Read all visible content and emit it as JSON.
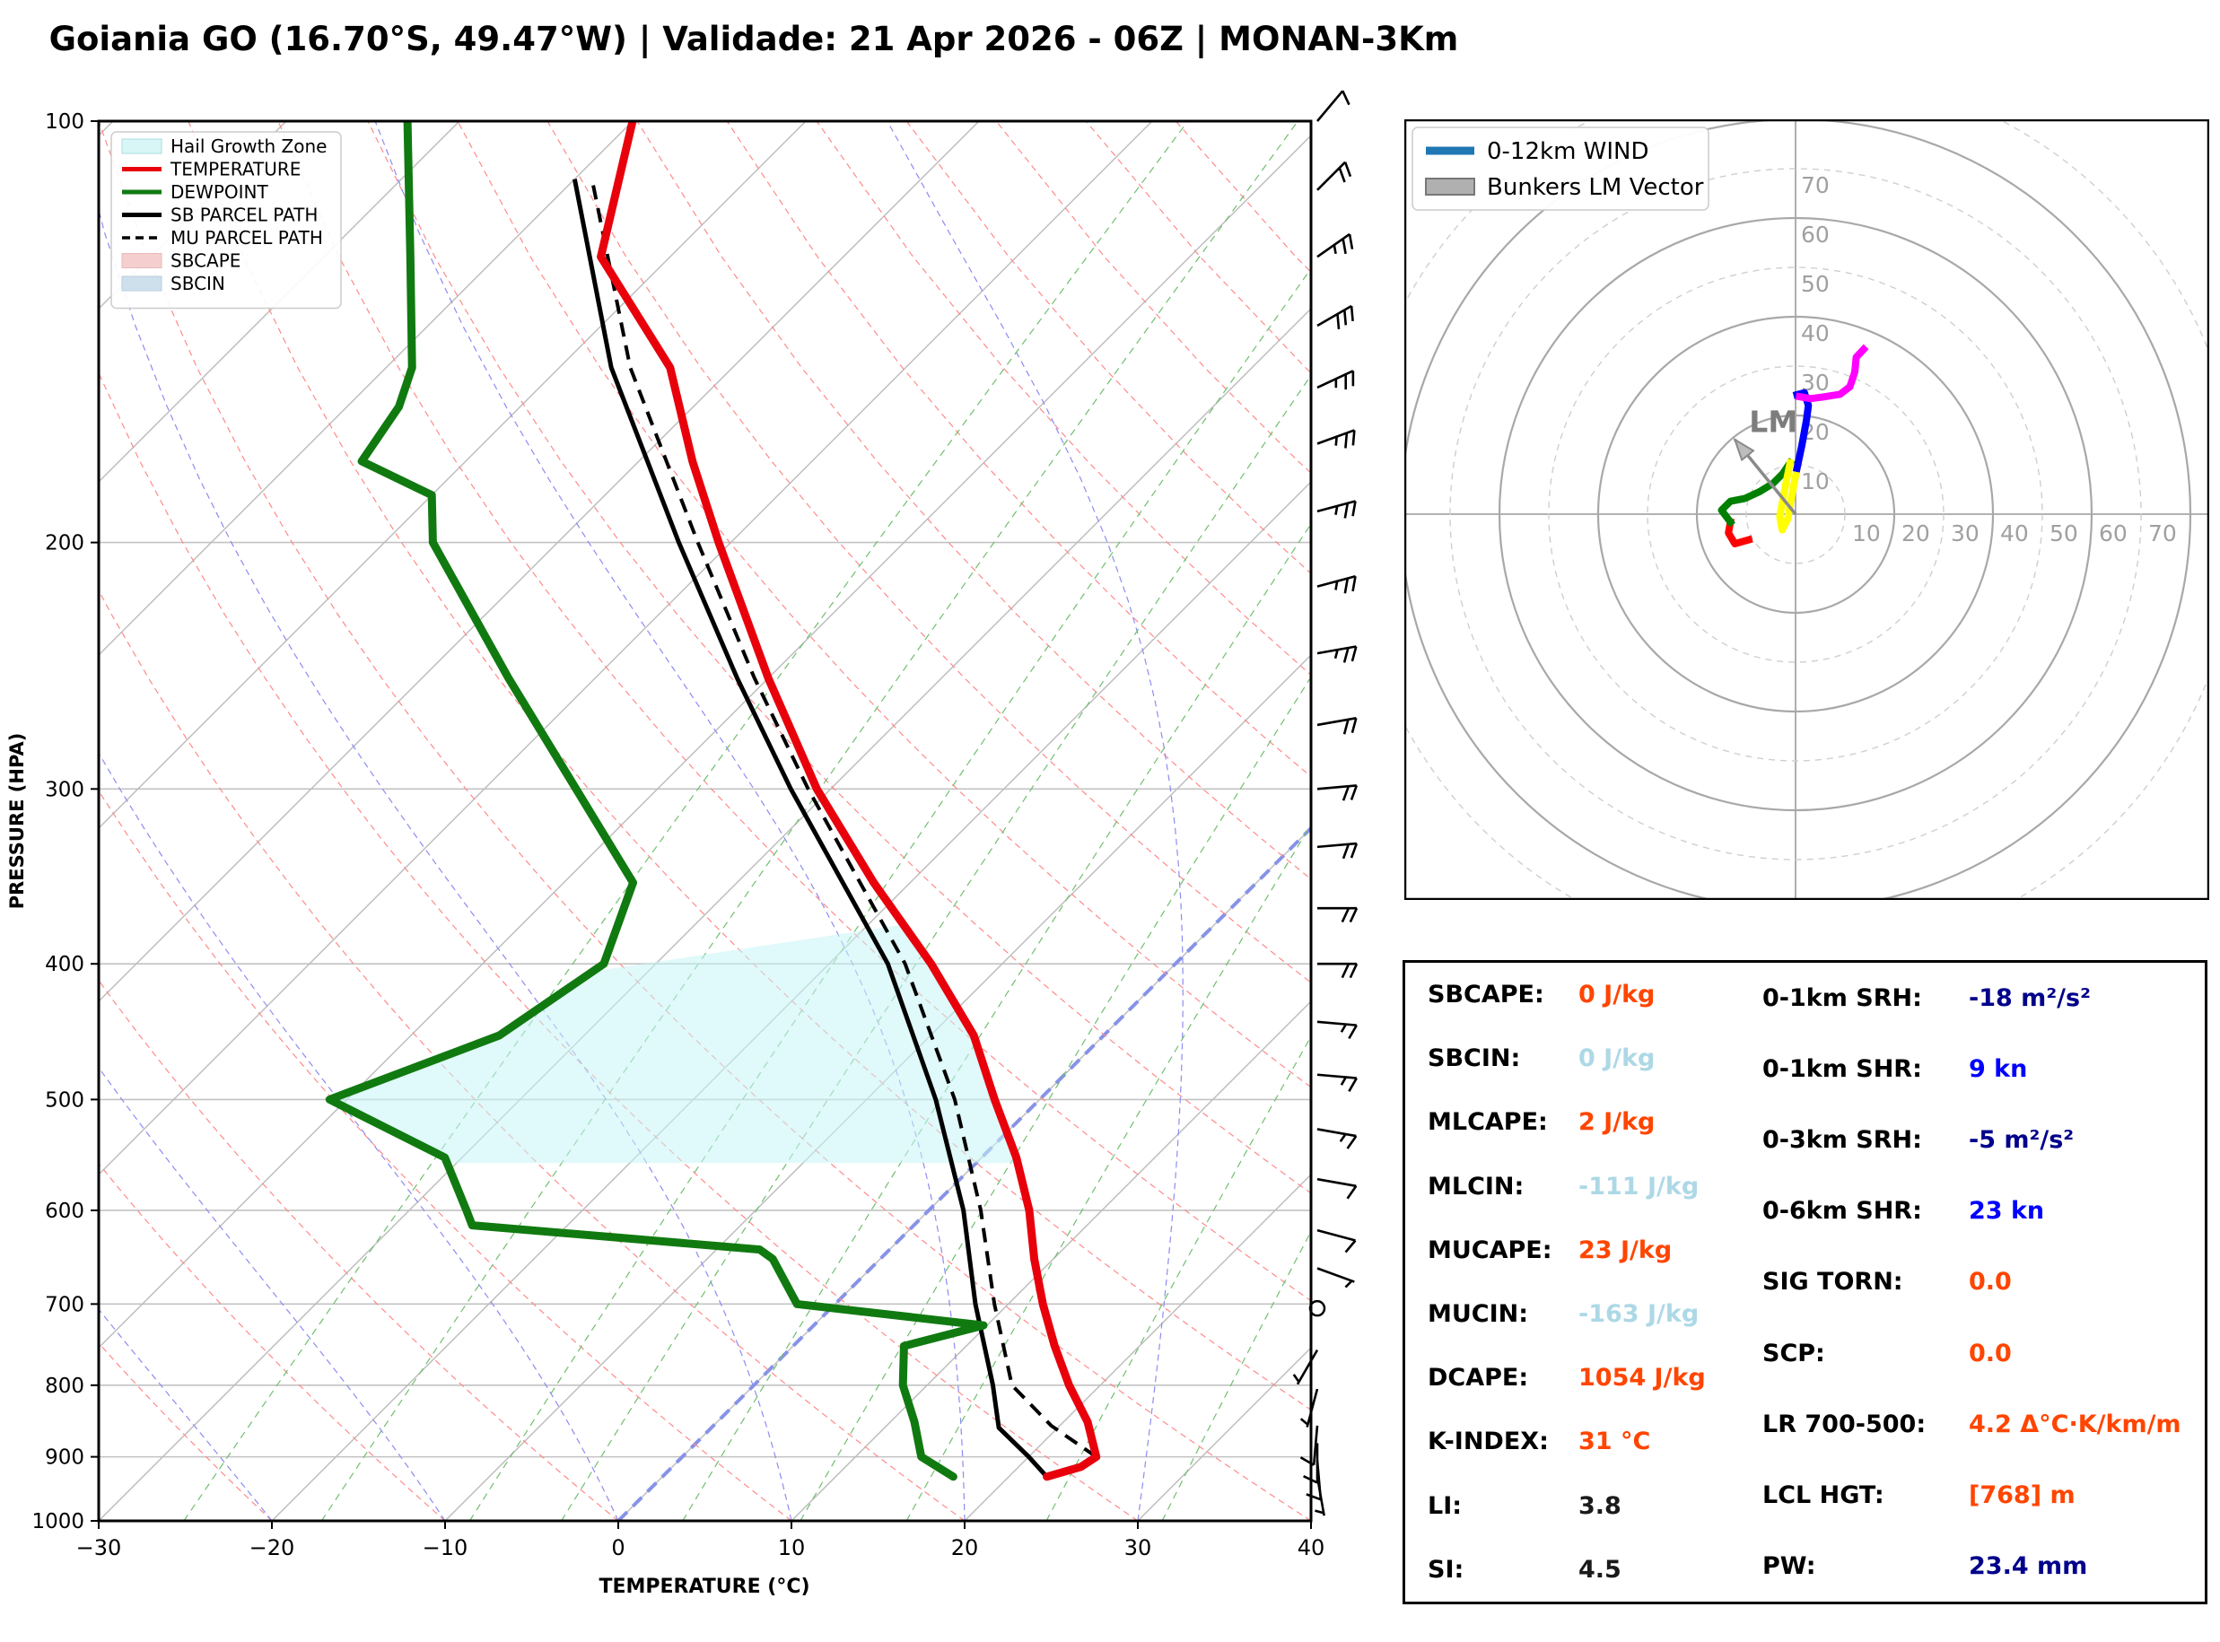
{
  "title": "Goiania GO (16.70°S, 49.47°W) | Validade: 21 Apr 2026 - 06Z | MONAN-3Km",
  "skewt": {
    "xlabel": "TEMPERATURE (°C)",
    "ylabel": "PRESSURE (HPA)",
    "x_ticks": [
      "−30",
      "−20",
      "−10",
      "0",
      "10",
      "20",
      "30",
      "40"
    ],
    "x_tick_values": [
      -30,
      -20,
      -10,
      0,
      10,
      20,
      30,
      40
    ],
    "y_ticks": [
      100,
      200,
      300,
      400,
      500,
      600,
      700,
      800,
      900,
      1000
    ],
    "legend": [
      {
        "label": "Hail Growth Zone",
        "type": "patch",
        "color": "#D9F6F6",
        "edge": "#aadde2"
      },
      {
        "label": "TEMPERATURE",
        "type": "line",
        "color": "#E8000B"
      },
      {
        "label": "DEWPOINT",
        "type": "line",
        "color": "#107A10"
      },
      {
        "label": "SB PARCEL PATH",
        "type": "line",
        "color": "#000000"
      },
      {
        "label": "MU PARCEL PATH",
        "type": "dashed",
        "color": "#000000"
      },
      {
        "label": "SBCAPE",
        "type": "patch",
        "color": "#F5CFCF",
        "edge": "#e8b8b8"
      },
      {
        "label": "SBCIN",
        "type": "patch",
        "color": "#CFE0ED",
        "edge": "#b8cede"
      }
    ],
    "colors": {
      "temperature": "#E8000B",
      "dewpoint": "#107A10",
      "parcel": "#000000",
      "isobar": "#c2c2c2",
      "isotherm": "#bbbbbb",
      "zero_isotherm": "#8793E8",
      "dry_adiabat": "#FF8A8A",
      "moist_adiabat": "#8C8CF2",
      "mixing_ratio": "#6FBF6F",
      "hail_zone_fill": "#C7F4F6"
    }
  },
  "chart_data": [
    {
      "type": "line",
      "name": "skewt_sounding",
      "title": "Goiania GO (16.70°S, 49.47°W) | Validade: 21 Apr 2026 - 06Z | MONAN-3Km",
      "xlabel": "TEMPERATURE (°C)",
      "ylabel": "PRESSURE (HPA)",
      "xlim": [
        -30,
        40
      ],
      "pressure_lim": [
        100,
        1000
      ],
      "temperature": {
        "pressure": [
          930,
          915,
          900,
          850,
          800,
          750,
          700,
          650,
          600,
          550,
          500,
          450,
          400,
          350,
          300,
          250,
          200,
          175,
          150,
          125,
          100
        ],
        "values": [
          22.2,
          23.6,
          23.9,
          21.4,
          18.2,
          15.1,
          12.0,
          8.9,
          5.8,
          2.0,
          -2.6,
          -7.5,
          -14.1,
          -22.1,
          -30.8,
          -40.0,
          -50.7,
          -56.9,
          -63.6,
          -74.0,
          -80.0
        ]
      },
      "dewpoint": {
        "pressure": [
          930,
          900,
          850,
          800,
          750,
          725,
          700,
          650,
          640,
          615,
          600,
          550,
          500,
          450,
          400,
          350,
          300,
          250,
          200,
          185,
          175,
          160,
          150,
          125,
          100
        ],
        "values": [
          16.8,
          13.8,
          11.4,
          8.6,
          6.4,
          9.8,
          -2.2,
          -6.2,
          -7.5,
          -25.5,
          -26.7,
          -31.0,
          -41.0,
          -34.9,
          -33.0,
          -36.0,
          -44.7,
          -55.0,
          -67.2,
          -70.0,
          -76.0,
          -77.0,
          -78.5,
          -85.0,
          -93.0
        ]
      },
      "sb_parcel": {
        "pressure": [
          930,
          900,
          858,
          800,
          700,
          600,
          500,
          400,
          300,
          250,
          200,
          150,
          110
        ],
        "values": [
          22.2,
          20.0,
          16.6,
          13.8,
          8.1,
          2.0,
          -6.0,
          -16.6,
          -32.3,
          -41.8,
          -53.0,
          -67.0,
          -80.0
        ]
      },
      "mu_parcel": {
        "pressure": [
          900,
          855,
          800,
          700,
          600,
          500,
          400,
          300,
          250,
          200,
          150,
          110
        ],
        "values": [
          23.9,
          19.5,
          14.9,
          9.2,
          3.0,
          -4.9,
          -15.6,
          -31.3,
          -40.8,
          -51.9,
          -65.9,
          -79.0
        ]
      },
      "hail_growth_zone_pressure": [
        555,
        375
      ],
      "wind_barbs": [
        {
          "p": 100,
          "dir": 40,
          "spd": 10
        },
        {
          "p": 112,
          "dir": 45,
          "spd": 20
        },
        {
          "p": 125,
          "dir": 55,
          "spd": 25
        },
        {
          "p": 140,
          "dir": 60,
          "spd": 30
        },
        {
          "p": 155,
          "dir": 65,
          "spd": 25
        },
        {
          "p": 170,
          "dir": 70,
          "spd": 25
        },
        {
          "p": 190,
          "dir": 75,
          "spd": 25
        },
        {
          "p": 215,
          "dir": 75,
          "spd": 25
        },
        {
          "p": 240,
          "dir": 80,
          "spd": 25
        },
        {
          "p": 270,
          "dir": 80,
          "spd": 20
        },
        {
          "p": 300,
          "dir": 85,
          "spd": 20
        },
        {
          "p": 330,
          "dir": 85,
          "spd": 20
        },
        {
          "p": 365,
          "dir": 90,
          "spd": 20
        },
        {
          "p": 400,
          "dir": 90,
          "spd": 20
        },
        {
          "p": 440,
          "dir": 95,
          "spd": 15
        },
        {
          "p": 480,
          "dir": 95,
          "spd": 15
        },
        {
          "p": 525,
          "dir": 100,
          "spd": 15
        },
        {
          "p": 570,
          "dir": 100,
          "spd": 10
        },
        {
          "p": 620,
          "dir": 105,
          "spd": 10
        },
        {
          "p": 660,
          "dir": 110,
          "spd": 8
        },
        {
          "p": 705,
          "dir": 0,
          "spd": 0
        },
        {
          "p": 755,
          "dir": 210,
          "spd": 5
        },
        {
          "p": 805,
          "dir": 195,
          "spd": 8
        },
        {
          "p": 855,
          "dir": 185,
          "spd": 10
        },
        {
          "p": 880,
          "dir": 180,
          "spd": 10
        },
        {
          "p": 905,
          "dir": 175,
          "spd": 10
        },
        {
          "p": 930,
          "dir": 170,
          "spd": 8
        }
      ]
    },
    {
      "type": "line",
      "name": "hodograph",
      "ring_step_kt": 10,
      "ring_labels": [
        10,
        20,
        30,
        40,
        50,
        60,
        70
      ],
      "legend": [
        {
          "label": "0-12km WIND",
          "type": "line",
          "color": "#1f77b4"
        },
        {
          "label": "Bunkers LM Vector",
          "type": "patch",
          "color": "#b0b0b0",
          "edge": "#777777"
        }
      ],
      "segments": [
        {
          "color": "#FF0000",
          "points": [
            [
              -9.5,
              -5.2
            ],
            [
              -12.3,
              -6.0
            ],
            [
              -13.6,
              -3.8
            ],
            [
              -13.2,
              -1.6
            ]
          ]
        },
        {
          "color": "#008000",
          "points": [
            [
              -13.2,
              -1.6
            ],
            [
              -15.0,
              0.8
            ],
            [
              -13.2,
              2.6
            ],
            [
              -10.2,
              3.2
            ],
            [
              -7.4,
              4.5
            ],
            [
              -4.6,
              6.2
            ],
            [
              -2.6,
              8.2
            ],
            [
              -1.1,
              10.4
            ]
          ]
        },
        {
          "color": "#FFFF00",
          "points": [
            [
              -1.1,
              10.4
            ],
            [
              -2.0,
              6.0
            ],
            [
              -3.2,
              -0.5
            ],
            [
              -2.7,
              -3.2
            ],
            [
              -1.6,
              -1.0
            ],
            [
              -0.8,
              3.5
            ],
            [
              0.3,
              9.3
            ]
          ]
        },
        {
          "color": "#0000FF",
          "points": [
            [
              0.3,
              9.3
            ],
            [
              1.3,
              14.0
            ],
            [
              2.2,
              19.0
            ],
            [
              2.6,
              22.0
            ],
            [
              1.8,
              24.6
            ],
            [
              0.3,
              24.2
            ]
          ]
        },
        {
          "color": "#FF00FF",
          "points": [
            [
              0.8,
              23.8
            ],
            [
              3.0,
              23.4
            ],
            [
              6.0,
              23.8
            ],
            [
              9.0,
              24.3
            ],
            [
              11.0,
              25.8
            ],
            [
              12.0,
              28.8
            ],
            [
              12.3,
              31.8
            ],
            [
              13.8,
              33.4
            ]
          ]
        }
      ],
      "lm_vector": {
        "u": -12.3,
        "v": 15.1,
        "label": "LM",
        "label_u": -9.4,
        "label_v": 16.6
      }
    }
  ],
  "stats": {
    "value_colors": {
      "orange": "#FF4500",
      "lightblue": "#ADD8E6",
      "navy": "#00008B",
      "blue": "#0000FF",
      "black": "#1a1a1a"
    },
    "left": [
      {
        "label": "SBCAPE:",
        "value": "0 J/kg",
        "color": "orange"
      },
      {
        "label": "SBCIN:",
        "value": "0 J/kg",
        "color": "lightblue"
      },
      {
        "label": "MLCAPE:",
        "value": "2 J/kg",
        "color": "orange"
      },
      {
        "label": "MLCIN:",
        "value": "-111 J/kg",
        "color": "lightblue"
      },
      {
        "label": "MUCAPE:",
        "value": "23 J/kg",
        "color": "orange"
      },
      {
        "label": "MUCIN:",
        "value": "-163 J/kg",
        "color": "lightblue"
      },
      {
        "label": "DCAPE:",
        "value": "1054 J/kg",
        "color": "orange"
      },
      {
        "label": "K-INDEX:",
        "value": "31 °C",
        "color": "orange"
      },
      {
        "label": "LI:",
        "value": "3.8",
        "color": "black"
      },
      {
        "label": "SI:",
        "value": "4.5",
        "color": "black"
      }
    ],
    "right": [
      {
        "label": "0-1km SRH:",
        "value": "-18 m²/s²",
        "color": "navy"
      },
      {
        "label": "0-1km SHR:",
        "value": "9 kn",
        "color": "blue"
      },
      {
        "label": "0-3km SRH:",
        "value": "-5 m²/s²",
        "color": "navy"
      },
      {
        "label": "0-6km SHR:",
        "value": "23 kn",
        "color": "blue"
      },
      {
        "label": "SIG TORN:",
        "value": "0.0",
        "color": "orange"
      },
      {
        "label": "SCP:",
        "value": "0.0",
        "color": "orange"
      },
      {
        "label": "LR 700-500:",
        "value": "4.2 Δ°C·K/km/m",
        "color": "orange"
      },
      {
        "label": "LCL HGT:",
        "value": "[768] m",
        "color": "orange"
      },
      {
        "label": "PW:",
        "value": "23.4 mm",
        "color": "navy"
      }
    ]
  }
}
